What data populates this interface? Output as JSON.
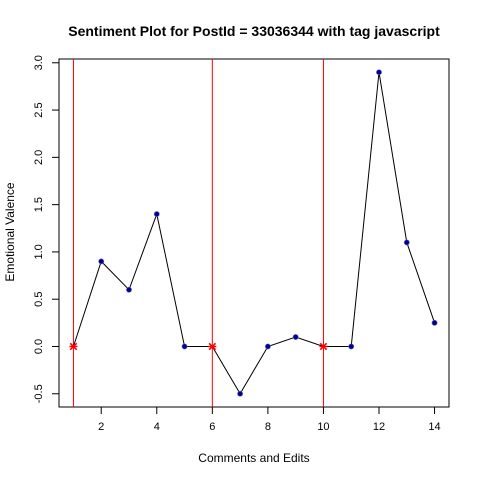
{
  "chart_data": {
    "type": "line",
    "title": "Sentiment Plot for PostId =  33036344  with tag  javascript",
    "xlabel": "Comments and Edits",
    "ylabel": "Emotional Valence",
    "x": [
      1,
      2,
      3,
      4,
      5,
      6,
      7,
      8,
      9,
      10,
      11,
      12,
      13,
      14
    ],
    "values": [
      0.0,
      0.9,
      0.6,
      1.4,
      0.0,
      0.0,
      -0.5,
      0.0,
      0.1,
      0.0,
      0.0,
      2.9,
      1.1,
      0.25
    ],
    "highlight_x": [
      1,
      6,
      10
    ],
    "vlines_x": [
      1,
      6,
      10
    ],
    "xlim": [
      0.48,
      14.52
    ],
    "ylim": [
      -0.64,
      3.04
    ],
    "xticks": [
      2,
      4,
      6,
      8,
      10,
      12,
      14
    ],
    "yticks": [
      -0.5,
      0.0,
      0.5,
      1.0,
      1.5,
      2.0,
      2.5,
      3.0
    ],
    "ytick_labels": [
      "-0.5",
      "0.0",
      "0.5",
      "1.0",
      "1.5",
      "2.0",
      "2.5",
      "3.0"
    ],
    "grid": false,
    "colors": {
      "line": "#000000",
      "point": "#00008B",
      "point_border": "#6666cc",
      "highlight": "#ff0000",
      "vline": "#ff0000"
    }
  }
}
